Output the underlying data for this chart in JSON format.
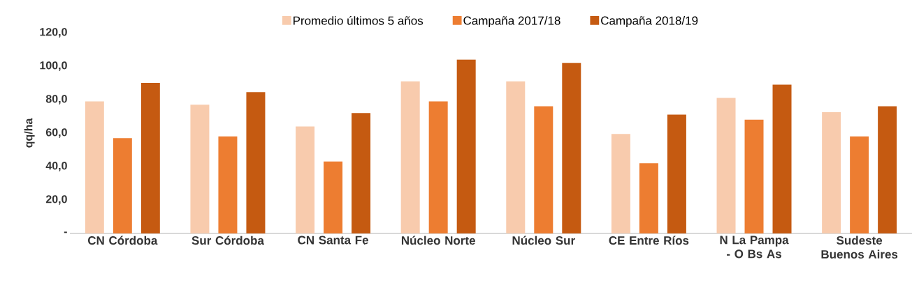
{
  "chart_data": {
    "type": "bar",
    "ylabel": "qq/ha",
    "categories": [
      "CN Córdoba",
      "Sur Córdoba",
      "CN Santa Fe",
      "Núcleo Norte",
      "Núcleo Sur",
      "CE Entre Ríos",
      "N La Pampa - O Bs As",
      "Sudeste Buenos Aires"
    ],
    "series": [
      {
        "name": "Promedio últimos 5 años",
        "color": "#f8cbad",
        "values": [
          79,
          77,
          64,
          91,
          91,
          59.5,
          81,
          72.5
        ]
      },
      {
        "name": "Campaña 2017/18",
        "color": "#ed7d31",
        "values": [
          57,
          58,
          43,
          79,
          76,
          42,
          68,
          58
        ]
      },
      {
        "name": "Campaña 2018/19",
        "color": "#c55a11",
        "values": [
          90,
          84.5,
          72,
          104,
          102,
          71,
          89,
          76
        ]
      }
    ],
    "ylim": [
      0,
      120
    ],
    "yticks": [
      {
        "value": 0,
        "label": "-"
      },
      {
        "value": 20,
        "label": "20,0"
      },
      {
        "value": 40,
        "label": "40,0"
      },
      {
        "value": 60,
        "label": "60,0"
      },
      {
        "value": 80,
        "label": "80,0"
      },
      {
        "value": 100,
        "label": "100,0"
      },
      {
        "value": 120,
        "label": "120,0"
      }
    ],
    "legend": "top"
  }
}
